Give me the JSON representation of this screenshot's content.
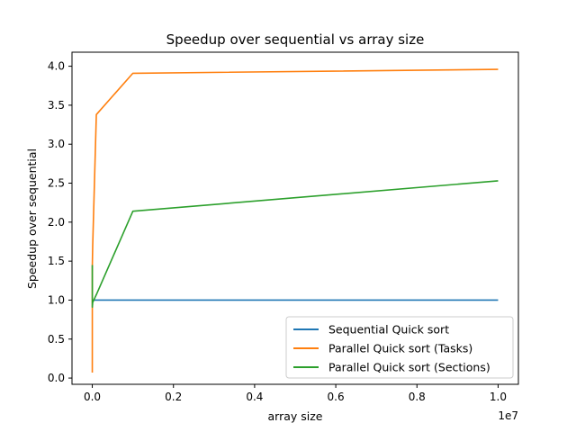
{
  "chart_data": {
    "type": "line",
    "title": "Speedup over sequential vs array size",
    "xlabel": "array size",
    "ylabel": "Speedup over sequential",
    "x_offset_label": "1e7",
    "xlim": [
      -500000,
      10500000
    ],
    "ylim": [
      -0.08,
      4.18
    ],
    "xticks": [
      0,
      2000000,
      4000000,
      6000000,
      8000000,
      10000000
    ],
    "xtick_labels": [
      "0.0",
      "0.2",
      "0.4",
      "0.6",
      "0.8",
      "1.0"
    ],
    "yticks": [
      0.0,
      0.5,
      1.0,
      1.5,
      2.0,
      2.5,
      3.0,
      3.5,
      4.0
    ],
    "ytick_labels": [
      "0.0",
      "0.5",
      "1.0",
      "1.5",
      "2.0",
      "2.5",
      "3.0",
      "3.5",
      "4.0"
    ],
    "grid": false,
    "legend_position": "lower-right",
    "x": [
      100,
      1000,
      10000,
      100000,
      1000000,
      10000000
    ],
    "series": [
      {
        "name": "Sequential Quick sort",
        "color": "#1f77b4",
        "values": [
          1.0,
          1.0,
          1.0,
          1.0,
          1.0,
          1.0
        ]
      },
      {
        "name": "Parallel Quick sort (Tasks)",
        "color": "#ff7f0e",
        "values": [
          0.07,
          1.45,
          1.7,
          3.38,
          3.91,
          3.96
        ]
      },
      {
        "name": "Parallel Quick sort (Sections)",
        "color": "#2ca02c",
        "values": [
          1.45,
          0.91,
          0.97,
          1.07,
          2.14,
          2.53
        ]
      }
    ]
  }
}
